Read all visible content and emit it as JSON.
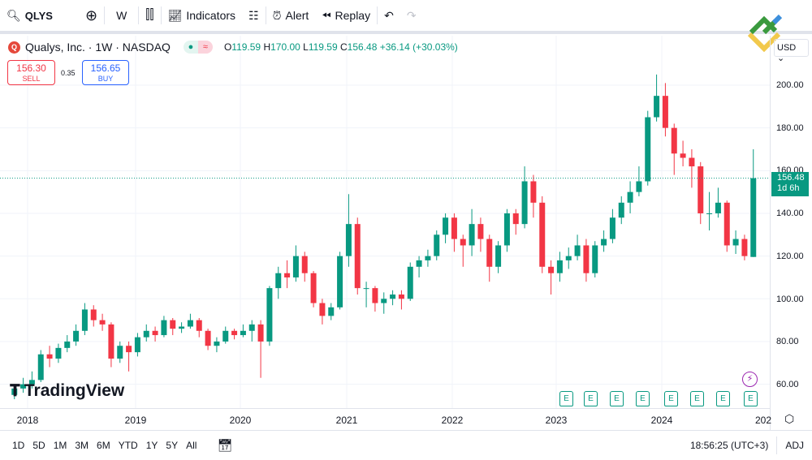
{
  "toolbar": {
    "symbol": "QLYS",
    "interval": "W",
    "indicators": "Indicators",
    "alert": "Alert",
    "replay": "Replay"
  },
  "legend": {
    "title": "Qualys, Inc. · 1W · NASDAQ",
    "logo_letter": "Q",
    "open_label": "O",
    "open": "119.59",
    "high_label": "H",
    "high": "170.00",
    "low_label": "L",
    "low": "119.59",
    "close_label": "C",
    "close": "156.48",
    "change": "+36.14 (+30.03%)"
  },
  "trade": {
    "sell_price": "156.30",
    "sell_label": "SELL",
    "spread": "0.35",
    "buy_price": "156.65",
    "buy_label": "BUY"
  },
  "currency": "USD",
  "current_price": {
    "price": "156.48",
    "countdown": "1d 6h"
  },
  "watermark": "TradingView",
  "earnings_marker": "E",
  "bottom": {
    "ranges": [
      "1D",
      "5D",
      "1M",
      "3M",
      "6M",
      "YTD",
      "1Y",
      "5Y",
      "All"
    ],
    "time": "18:56:25 (UTC+3)",
    "adj": "ADJ"
  },
  "colors": {
    "up": "#089981",
    "down": "#f23645",
    "accent": "#2962ff"
  },
  "chart_data": {
    "type": "candlestick",
    "title": "Qualys, Inc. · 1W · NASDAQ",
    "ylim": [
      52,
      212
    ],
    "y_ticks": [
      "200.00",
      "180.00",
      "160.00",
      "140.00",
      "120.00",
      "100.00",
      "80.00",
      "60.00"
    ],
    "x_ticks": [
      "2018",
      "2019",
      "2020",
      "2021",
      "2022",
      "2023",
      "2024",
      "202"
    ],
    "grid": true,
    "columns": [
      "date",
      "open",
      "high",
      "low",
      "close"
    ],
    "candles": [
      [
        "2017-11",
        55,
        60,
        53,
        58
      ],
      [
        "2017-12",
        58,
        63,
        56,
        60
      ],
      [
        "2018-01",
        60,
        66,
        58,
        62
      ],
      [
        "2018-02",
        62,
        76,
        61,
        74
      ],
      [
        "2018-03",
        74,
        78,
        68,
        72
      ],
      [
        "2018-04",
        72,
        79,
        70,
        77
      ],
      [
        "2018-05",
        77,
        83,
        75,
        80
      ],
      [
        "2018-06",
        80,
        88,
        78,
        85
      ],
      [
        "2018-07",
        85,
        98,
        83,
        95
      ],
      [
        "2018-08",
        95,
        97,
        87,
        90
      ],
      [
        "2018-09",
        90,
        93,
        85,
        88
      ],
      [
        "2018-10",
        88,
        89,
        68,
        72
      ],
      [
        "2018-11",
        72,
        80,
        70,
        78
      ],
      [
        "2018-12",
        78,
        80,
        66,
        75
      ],
      [
        "2019-01",
        75,
        84,
        73,
        82
      ],
      [
        "2019-02",
        82,
        88,
        80,
        85
      ],
      [
        "2019-03",
        85,
        87,
        80,
        83
      ],
      [
        "2019-04",
        83,
        92,
        82,
        90
      ],
      [
        "2019-05",
        90,
        91,
        83,
        86
      ],
      [
        "2019-06",
        86,
        89,
        84,
        87
      ],
      [
        "2019-07",
        87,
        93,
        86,
        90
      ],
      [
        "2019-08",
        90,
        91,
        82,
        85
      ],
      [
        "2019-09",
        85,
        86,
        76,
        78
      ],
      [
        "2019-10",
        78,
        82,
        75,
        80
      ],
      [
        "2019-11",
        80,
        87,
        79,
        85
      ],
      [
        "2019-12",
        85,
        86,
        81,
        83
      ],
      [
        "2020-01",
        83,
        88,
        82,
        85
      ],
      [
        "2020-02",
        85,
        90,
        80,
        88
      ],
      [
        "2020-03",
        88,
        90,
        63,
        80
      ],
      [
        "2020-04",
        80,
        106,
        78,
        105
      ],
      [
        "2020-05",
        105,
        115,
        100,
        112
      ],
      [
        "2020-06",
        112,
        118,
        105,
        110
      ],
      [
        "2020-07",
        110,
        125,
        108,
        120
      ],
      [
        "2020-08",
        120,
        122,
        108,
        112
      ],
      [
        "2020-09",
        112,
        113,
        96,
        98
      ],
      [
        "2020-10",
        98,
        100,
        88,
        92
      ],
      [
        "2020-11",
        92,
        98,
        90,
        96
      ],
      [
        "2020-12",
        96,
        122,
        95,
        120
      ],
      [
        "2021-01",
        120,
        149,
        115,
        135
      ],
      [
        "2021-02",
        135,
        138,
        102,
        105
      ],
      [
        "2021-03",
        105,
        108,
        96,
        105
      ],
      [
        "2021-04",
        105,
        106,
        94,
        98
      ],
      [
        "2021-05",
        98,
        103,
        93,
        100
      ],
      [
        "2021-06",
        100,
        104,
        97,
        102
      ],
      [
        "2021-07",
        102,
        104,
        95,
        100
      ],
      [
        "2021-08",
        100,
        117,
        99,
        115
      ],
      [
        "2021-09",
        115,
        120,
        110,
        118
      ],
      [
        "2021-10",
        118,
        123,
        115,
        120
      ],
      [
        "2021-11",
        120,
        132,
        118,
        130
      ],
      [
        "2021-12",
        130,
        140,
        126,
        138
      ],
      [
        "2022-01",
        138,
        140,
        122,
        128
      ],
      [
        "2022-02",
        128,
        130,
        115,
        125
      ],
      [
        "2022-03",
        125,
        142,
        120,
        135
      ],
      [
        "2022-04",
        135,
        138,
        122,
        128
      ],
      [
        "2022-05",
        128,
        130,
        108,
        115
      ],
      [
        "2022-06",
        115,
        127,
        112,
        125
      ],
      [
        "2022-07",
        125,
        142,
        122,
        140
      ],
      [
        "2022-08",
        140,
        142,
        130,
        135
      ],
      [
        "2022-09",
        135,
        162,
        133,
        155
      ],
      [
        "2022-10",
        155,
        158,
        138,
        145
      ],
      [
        "2022-11",
        145,
        148,
        112,
        115
      ],
      [
        "2022-12",
        115,
        118,
        102,
        112
      ],
      [
        "2023-01",
        112,
        122,
        108,
        118
      ],
      [
        "2023-02",
        118,
        124,
        114,
        120
      ],
      [
        "2023-03",
        120,
        130,
        118,
        125
      ],
      [
        "2023-04",
        125,
        128,
        108,
        112
      ],
      [
        "2023-05",
        112,
        127,
        110,
        125
      ],
      [
        "2023-06",
        125,
        132,
        122,
        128
      ],
      [
        "2023-07",
        128,
        142,
        126,
        138
      ],
      [
        "2023-08",
        138,
        148,
        135,
        145
      ],
      [
        "2023-09",
        145,
        155,
        140,
        150
      ],
      [
        "2023-10",
        150,
        162,
        148,
        155
      ],
      [
        "2023-11",
        155,
        188,
        153,
        185
      ],
      [
        "2023-12",
        185,
        205,
        183,
        195
      ],
      [
        "2024-01",
        195,
        201,
        176,
        180
      ],
      [
        "2024-02",
        180,
        182,
        158,
        168
      ],
      [
        "2024-03",
        168,
        174,
        162,
        166
      ],
      [
        "2024-04",
        166,
        170,
        152,
        162
      ],
      [
        "2024-05",
        162,
        164,
        135,
        140
      ],
      [
        "2024-06",
        140,
        150,
        132,
        140
      ],
      [
        "2024-07",
        140,
        152,
        138,
        145
      ],
      [
        "2024-08",
        145,
        146,
        122,
        125
      ],
      [
        "2024-09",
        125,
        132,
        121,
        128
      ],
      [
        "2024-10",
        128,
        130,
        118,
        120
      ],
      [
        "2024-11",
        119.59,
        170,
        119.59,
        156.48
      ]
    ],
    "last_price": 156.48
  }
}
